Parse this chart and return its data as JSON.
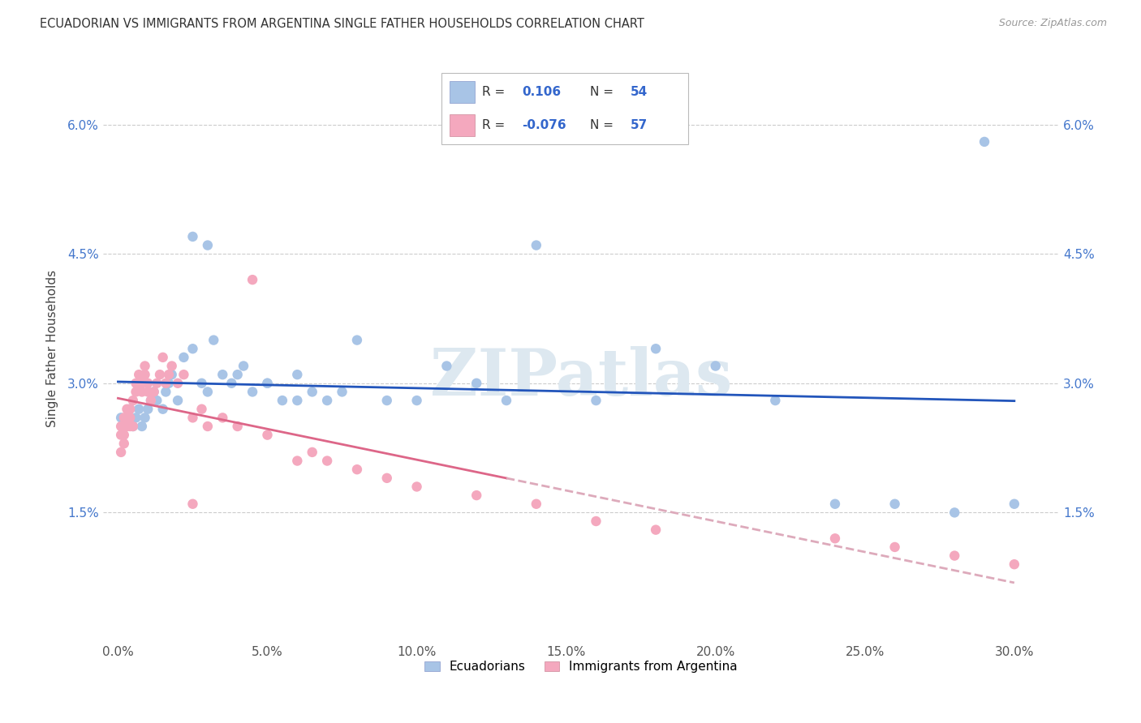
{
  "title": "ECUADORIAN VS IMMIGRANTS FROM ARGENTINA SINGLE FATHER HOUSEHOLDS CORRELATION CHART",
  "source": "Source: ZipAtlas.com",
  "ylabel": "Single Father Households",
  "xlabel_ticks": [
    "0.0%",
    "5.0%",
    "10.0%",
    "15.0%",
    "20.0%",
    "25.0%",
    "30.0%"
  ],
  "xlabel_vals": [
    0.0,
    0.05,
    0.1,
    0.15,
    0.2,
    0.25,
    0.3
  ],
  "ylabel_ticks": [
    "1.5%",
    "3.0%",
    "4.5%",
    "6.0%"
  ],
  "ylabel_vals": [
    0.015,
    0.03,
    0.045,
    0.06
  ],
  "ylim": [
    0.0,
    0.068
  ],
  "xlim": [
    -0.005,
    0.315
  ],
  "r_blue": "0.106",
  "n_blue": "54",
  "r_pink": "-0.076",
  "n_pink": "57",
  "color_blue": "#a8c4e6",
  "color_pink": "#f4a8be",
  "line_blue": "#2255bb",
  "line_pink_solid": "#dd6688",
  "line_pink_dash": "#ddaabb",
  "watermark": "ZIPatlas",
  "legend_labels": [
    "Ecuadorians",
    "Immigrants from Argentina"
  ],
  "blue_x": [
    0.001,
    0.002,
    0.003,
    0.004,
    0.005,
    0.006,
    0.007,
    0.008,
    0.009,
    0.01,
    0.011,
    0.012,
    0.013,
    0.015,
    0.016,
    0.017,
    0.018,
    0.02,
    0.022,
    0.025,
    0.028,
    0.03,
    0.032,
    0.035,
    0.038,
    0.042,
    0.045,
    0.05,
    0.055,
    0.06,
    0.065,
    0.07,
    0.075,
    0.08,
    0.09,
    0.1,
    0.11,
    0.12,
    0.13,
    0.14,
    0.16,
    0.18,
    0.2,
    0.22,
    0.24,
    0.26,
    0.28,
    0.29,
    0.3,
    0.025,
    0.03,
    0.04,
    0.05,
    0.06
  ],
  "blue_y": [
    0.026,
    0.025,
    0.026,
    0.027,
    0.025,
    0.026,
    0.027,
    0.025,
    0.026,
    0.027,
    0.028,
    0.029,
    0.028,
    0.027,
    0.029,
    0.03,
    0.031,
    0.028,
    0.033,
    0.034,
    0.03,
    0.029,
    0.035,
    0.031,
    0.03,
    0.032,
    0.029,
    0.03,
    0.028,
    0.031,
    0.029,
    0.028,
    0.029,
    0.035,
    0.028,
    0.028,
    0.032,
    0.03,
    0.028,
    0.046,
    0.028,
    0.034,
    0.032,
    0.028,
    0.016,
    0.016,
    0.015,
    0.058,
    0.016,
    0.047,
    0.046,
    0.031,
    0.03,
    0.028
  ],
  "pink_x": [
    0.001,
    0.001,
    0.001,
    0.002,
    0.002,
    0.002,
    0.002,
    0.003,
    0.003,
    0.003,
    0.004,
    0.004,
    0.004,
    0.005,
    0.005,
    0.006,
    0.006,
    0.007,
    0.007,
    0.008,
    0.008,
    0.009,
    0.009,
    0.01,
    0.01,
    0.011,
    0.012,
    0.013,
    0.014,
    0.015,
    0.016,
    0.017,
    0.018,
    0.02,
    0.022,
    0.025,
    0.028,
    0.03,
    0.035,
    0.04,
    0.045,
    0.05,
    0.06,
    0.065,
    0.07,
    0.08,
    0.09,
    0.1,
    0.12,
    0.14,
    0.16,
    0.18,
    0.24,
    0.26,
    0.28,
    0.3,
    0.025
  ],
  "pink_y": [
    0.025,
    0.024,
    0.022,
    0.025,
    0.026,
    0.024,
    0.023,
    0.025,
    0.027,
    0.026,
    0.025,
    0.027,
    0.026,
    0.025,
    0.028,
    0.03,
    0.029,
    0.031,
    0.03,
    0.03,
    0.029,
    0.032,
    0.031,
    0.03,
    0.029,
    0.028,
    0.029,
    0.03,
    0.031,
    0.033,
    0.03,
    0.031,
    0.032,
    0.03,
    0.031,
    0.026,
    0.027,
    0.025,
    0.026,
    0.025,
    0.042,
    0.024,
    0.021,
    0.022,
    0.021,
    0.02,
    0.019,
    0.018,
    0.017,
    0.016,
    0.014,
    0.013,
    0.012,
    0.011,
    0.01,
    0.009,
    0.016
  ]
}
